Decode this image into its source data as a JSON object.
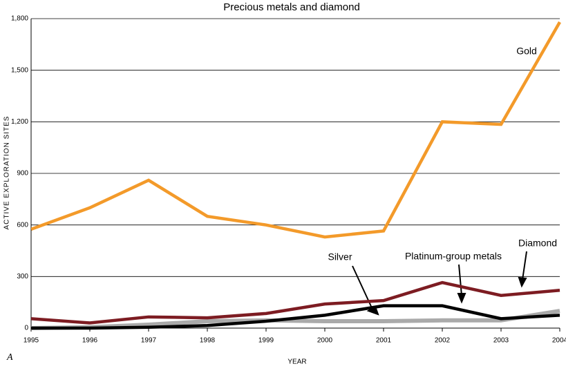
{
  "chart_data": {
    "type": "line",
    "title": "Precious metals and diamond",
    "xlabel": "YEAR",
    "ylabel": "ACTIVE EXPLORATION SITES",
    "panel_label": "A",
    "x": [
      1995,
      1996,
      1997,
      1998,
      1999,
      2000,
      2001,
      2002,
      2003,
      2004
    ],
    "xlim": [
      1995,
      2004
    ],
    "xticks": [
      1995,
      1996,
      1997,
      1998,
      1999,
      2000,
      2001,
      2002,
      2003,
      2004
    ],
    "ylim": [
      0,
      1800
    ],
    "yticks": [
      0,
      300,
      600,
      900,
      {
        "value": 1200,
        "label": "1,200"
      },
      {
        "value": 1500,
        "label": "1,500"
      },
      {
        "value": 1800,
        "label": "1,800"
      }
    ],
    "grid": true,
    "series": [
      {
        "name": "Platinum-group metals",
        "color": "#aaaaaa",
        "values": [
          0,
          5,
          20,
          40,
          45,
          40,
          40,
          45,
          45,
          100
        ]
      },
      {
        "name": "Silver",
        "color": "#000000",
        "values": [
          0,
          0,
          5,
          15,
          40,
          75,
          130,
          130,
          55,
          75
        ]
      },
      {
        "name": "Diamond",
        "color": "#7d1c22",
        "values": [
          55,
          30,
          65,
          60,
          85,
          140,
          160,
          265,
          190,
          220
        ]
      },
      {
        "name": "Gold",
        "color": "#f39a2a",
        "values": [
          575,
          700,
          860,
          650,
          600,
          530,
          565,
          1200,
          1185,
          1780
        ]
      }
    ]
  }
}
